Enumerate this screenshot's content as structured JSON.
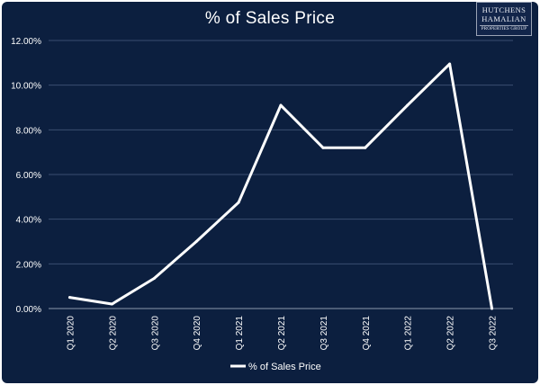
{
  "logo": {
    "line1": "HUTCHENS",
    "line2": "HAMALIAN",
    "line3": "PROPERTIES GROUP"
  },
  "colors": {
    "background": "#0c1f3f",
    "line": "#ffffff",
    "grid": "#3a4e70",
    "text": "#ffffff"
  },
  "chart_data": {
    "type": "line",
    "title": "% of Sales Price",
    "categories": [
      "Q1 2020",
      "Q2 2020",
      "Q3 2020",
      "Q4 2020",
      "Q1 2021",
      "Q2 2021",
      "Q3 2021",
      "Q4 2021",
      "Q1 2022",
      "Q2 2022",
      "Q3 2022"
    ],
    "series": [
      {
        "name": "% of Sales Price",
        "values": [
          0.5,
          0.2,
          1.35,
          3.0,
          4.75,
          9.1,
          7.2,
          7.2,
          9.1,
          10.95,
          0.0
        ]
      }
    ],
    "y_ticks": [
      "0.00%",
      "2.00%",
      "4.00%",
      "6.00%",
      "8.00%",
      "10.00%",
      "12.00%"
    ],
    "ylim": [
      0,
      12
    ],
    "grid": true,
    "legend_position": "bottom"
  }
}
